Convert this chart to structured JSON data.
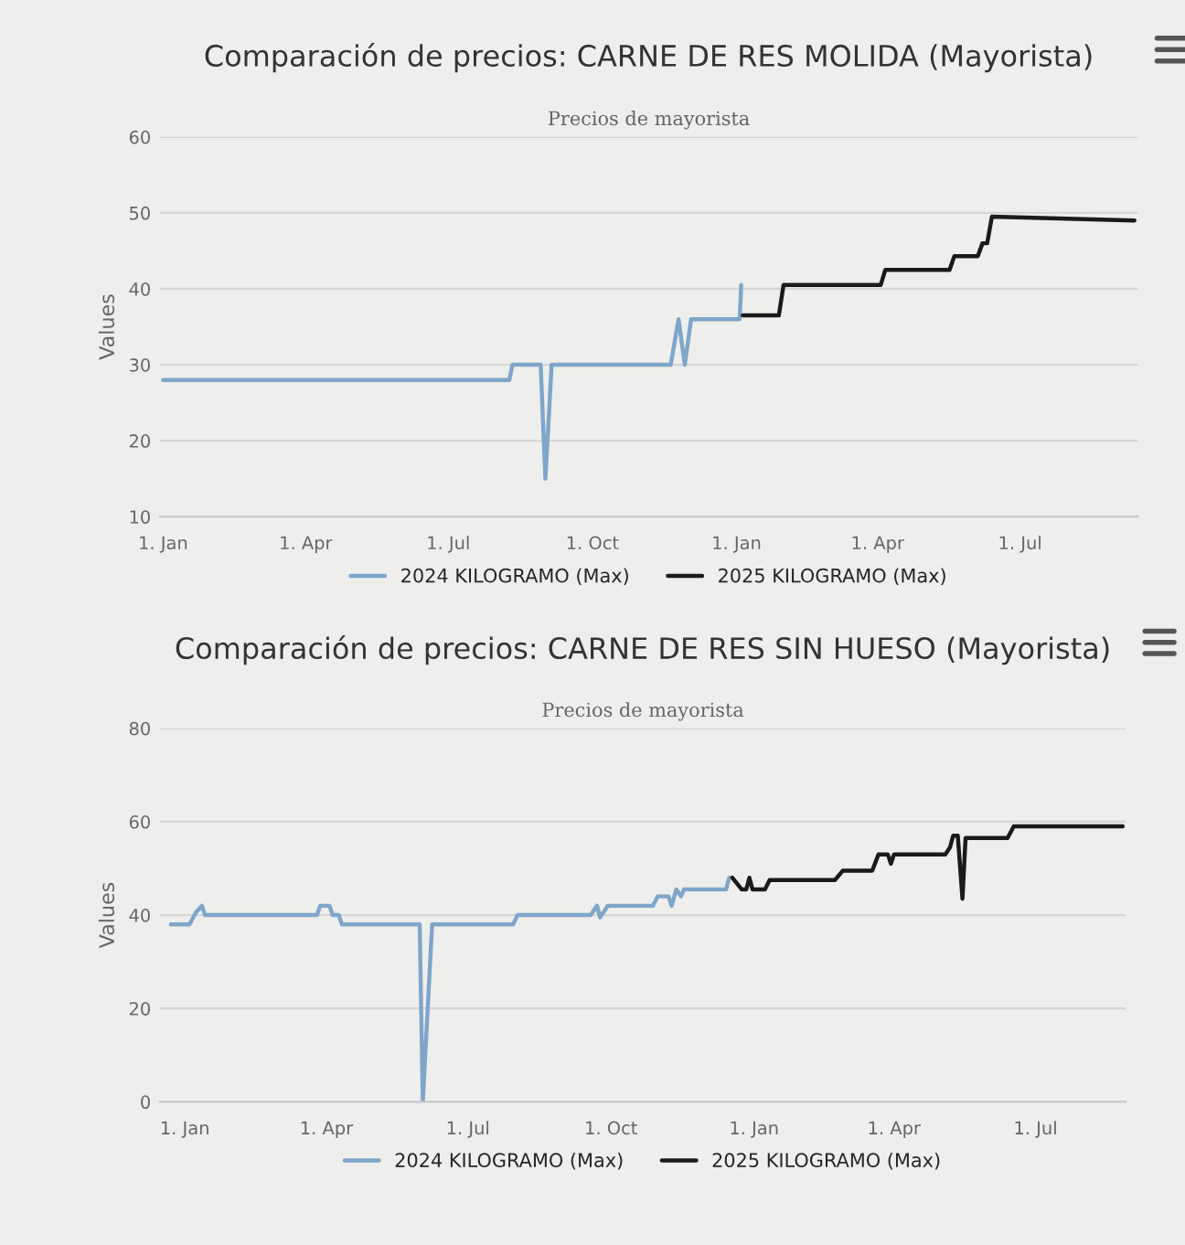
{
  "chart_data": [
    {
      "type": "line",
      "title": "Comparación de precios: CARNE DE RES MOLIDA (Mayorista)",
      "subtitle": "Precios de mayorista",
      "ylabel": "Values",
      "xlim": [
        "2023-12-30",
        "2025-09-14"
      ],
      "ylim": [
        10,
        60
      ],
      "yticks": [
        10,
        20,
        30,
        40,
        50,
        60
      ],
      "xticks": [
        {
          "value": "2024-01-01",
          "label": "1. Jan"
        },
        {
          "value": "2024-04-01",
          "label": "1. Apr"
        },
        {
          "value": "2024-07-01",
          "label": "1. Jul"
        },
        {
          "value": "2024-10-01",
          "label": "1. Oct"
        },
        {
          "value": "2025-01-01",
          "label": "1. Jan"
        },
        {
          "value": "2025-04-01",
          "label": "1. Apr"
        },
        {
          "value": "2025-07-01",
          "label": "1. Jul"
        }
      ],
      "grid": "y",
      "legend": "bottom",
      "series": [
        {
          "name": "2024 KILOGRAMO (Max)",
          "color": "#7fa6c9",
          "x": [
            "2024-01-01",
            "2024-08-09",
            "2024-08-11",
            "2024-08-29",
            "2024-09-01",
            "2024-09-05",
            "2024-11-20",
            "2024-11-25",
            "2024-11-29",
            "2024-12-03",
            "2025-01-03",
            "2025-01-04"
          ],
          "values": [
            28,
            28,
            30,
            30,
            15,
            30,
            30,
            36,
            30,
            36,
            36,
            40.5
          ]
        },
        {
          "name": "2025 KILOGRAMO (Max)",
          "color": "#1a1a1a",
          "x": [
            "2025-01-05",
            "2025-01-28",
            "2025-01-31",
            "2025-04-03",
            "2025-04-06",
            "2025-05-17",
            "2025-05-20",
            "2025-06-04",
            "2025-06-07",
            "2025-06-10",
            "2025-06-13",
            "2025-09-12"
          ],
          "values": [
            36.5,
            36.5,
            40.5,
            40.5,
            42.5,
            42.5,
            44.3,
            44.3,
            46,
            46,
            49.5,
            49
          ]
        }
      ]
    },
    {
      "type": "line",
      "title": "Comparación de precios: CARNE DE RES SIN HUESO (Mayorista)",
      "subtitle": "Precios de mayorista",
      "ylabel": "Values",
      "xlim": [
        "2023-12-16",
        "2025-08-28"
      ],
      "ylim": [
        0,
        80
      ],
      "yticks": [
        0,
        20,
        40,
        60,
        80
      ],
      "xticks": [
        {
          "value": "2024-01-01",
          "label": "1. Jan"
        },
        {
          "value": "2024-04-01",
          "label": "1. Apr"
        },
        {
          "value": "2024-07-01",
          "label": "1. Jul"
        },
        {
          "value": "2024-10-01",
          "label": "1. Oct"
        },
        {
          "value": "2025-01-01",
          "label": "1. Jan"
        },
        {
          "value": "2025-04-01",
          "label": "1. Apr"
        },
        {
          "value": "2025-07-01",
          "label": "1. Jul"
        }
      ],
      "grid": "y",
      "legend": "bottom",
      "series": [
        {
          "name": "2024 KILOGRAMO (Max)",
          "color": "#7fa6c9",
          "x": [
            "2023-12-23",
            "2024-01-04",
            "2024-01-08",
            "2024-01-12",
            "2024-01-14",
            "2024-03-26",
            "2024-03-28",
            "2024-04-03",
            "2024-04-05",
            "2024-04-09",
            "2024-04-11",
            "2024-05-31",
            "2024-06-02",
            "2024-06-08",
            "2024-07-30",
            "2024-08-02",
            "2024-09-18",
            "2024-09-22",
            "2024-09-24",
            "2024-09-29",
            "2024-10-28",
            "2024-10-31",
            "2024-11-07",
            "2024-11-09",
            "2024-11-12",
            "2024-11-15",
            "2024-11-17",
            "2024-12-14",
            "2024-12-16"
          ],
          "values": [
            38,
            38,
            40.5,
            42,
            40,
            40,
            42,
            42,
            40,
            40,
            38,
            38,
            0,
            38,
            38,
            40,
            40,
            42,
            39.5,
            42,
            42,
            44,
            44,
            42,
            45.5,
            44,
            45.5,
            45.5,
            48
          ]
        },
        {
          "name": "2025 KILOGRAMO (Max)",
          "color": "#1a1a1a",
          "x": [
            "2024-12-18",
            "2024-12-24",
            "2024-12-27",
            "2024-12-29",
            "2024-12-31",
            "2025-01-08",
            "2025-01-11",
            "2025-02-22",
            "2025-02-27",
            "2025-03-18",
            "2025-03-22",
            "2025-03-28",
            "2025-03-30",
            "2025-04-01",
            "2025-05-04",
            "2025-05-07",
            "2025-05-09",
            "2025-05-12",
            "2025-05-15",
            "2025-05-17",
            "2025-06-13",
            "2025-06-17",
            "2025-08-26"
          ],
          "values": [
            48,
            45.5,
            45.5,
            48,
            45.5,
            45.5,
            47.5,
            47.5,
            49.5,
            49.5,
            53,
            53,
            51,
            53,
            53,
            54.5,
            57,
            57,
            43.5,
            56.5,
            56.5,
            59,
            59
          ]
        }
      ]
    }
  ]
}
